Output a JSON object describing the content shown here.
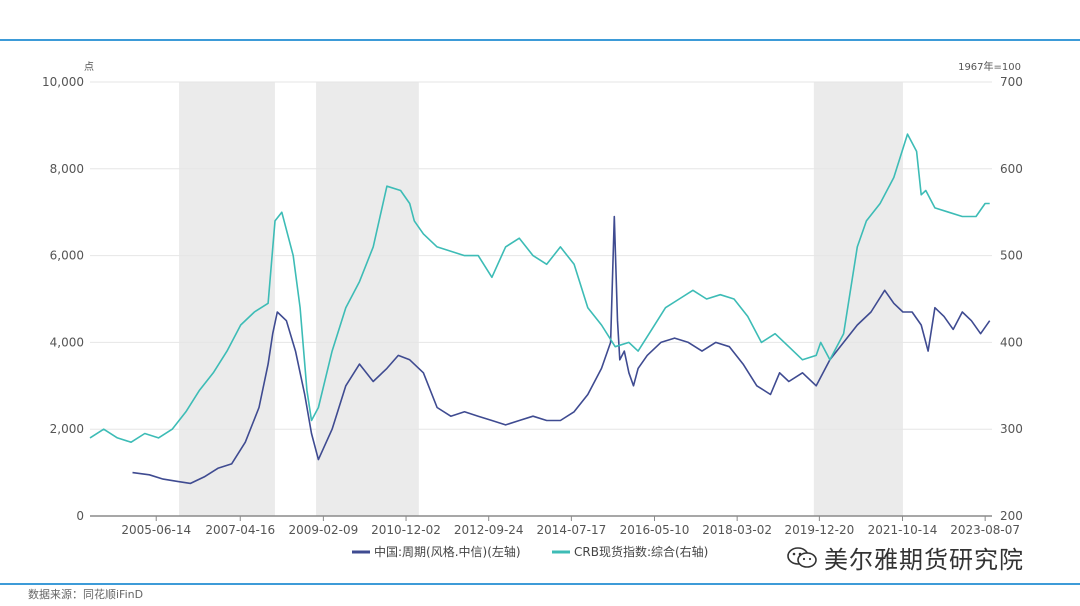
{
  "source": "数据来源：同花顺iFinD",
  "watermark": "美尔雅期货研究院",
  "chart_data": {
    "type": "line",
    "left_axis": {
      "unit": "点",
      "min": 0,
      "max": 10000,
      "ticks": [
        0,
        2000,
        4000,
        6000,
        8000,
        10000
      ],
      "tick_labels": [
        "0",
        "2,000",
        "4,000",
        "6,000",
        "8,000",
        "10,000"
      ]
    },
    "right_axis": {
      "unit": "1967年=100",
      "min": 200,
      "max": 700,
      "ticks": [
        200,
        300,
        400,
        500,
        600,
        700
      ],
      "tick_labels": [
        "200",
        "300",
        "400",
        "500",
        "600",
        "700"
      ]
    },
    "x_range": [
      2004.0,
      2023.75
    ],
    "x_ticks": [
      2005.45,
      2007.29,
      2009.11,
      2010.92,
      2012.73,
      2014.54,
      2016.36,
      2018.17,
      2019.97,
      2021.79,
      2023.6
    ],
    "x_tick_labels": [
      "2005-06-14",
      "2007-04-16",
      "2009-02-09",
      "2010-12-02",
      "2012-09-24",
      "2014-07-17",
      "2016-05-10",
      "2018-03-02",
      "2019-12-20",
      "2021-10-14",
      "2023-08-07"
    ],
    "shaded_periods": [
      [
        2005.95,
        2008.05
      ],
      [
        2008.95,
        2011.2
      ],
      [
        2019.85,
        2021.8
      ]
    ],
    "grid": true,
    "legend_position": "bottom",
    "series": [
      {
        "name": "中国:周期(风格.中信)(左轴)",
        "axis": "left",
        "color": "#3f4b91",
        "x": [
          2004.93,
          2005.3,
          2005.6,
          2005.9,
          2006.2,
          2006.5,
          2006.8,
          2007.1,
          2007.4,
          2007.7,
          2007.9,
          2008.0,
          2008.1,
          2008.3,
          2008.5,
          2008.7,
          2008.85,
          2009.0,
          2009.3,
          2009.6,
          2009.9,
          2010.2,
          2010.5,
          2010.75,
          2011.0,
          2011.3,
          2011.6,
          2011.9,
          2012.2,
          2012.5,
          2012.8,
          2013.1,
          2013.4,
          2013.7,
          2014.0,
          2014.3,
          2014.6,
          2014.9,
          2015.2,
          2015.4,
          2015.48,
          2015.55,
          2015.6,
          2015.7,
          2015.8,
          2015.9,
          2016.0,
          2016.2,
          2016.5,
          2016.8,
          2017.1,
          2017.4,
          2017.7,
          2018.0,
          2018.3,
          2018.6,
          2018.9,
          2019.1,
          2019.3,
          2019.6,
          2019.9,
          2020.2,
          2020.5,
          2020.8,
          2021.1,
          2021.4,
          2021.6,
          2021.8,
          2022.0,
          2022.2,
          2022.35,
          2022.5,
          2022.7,
          2022.9,
          2023.1,
          2023.3,
          2023.5,
          2023.7
        ],
        "values": [
          1000,
          950,
          850,
          800,
          750,
          900,
          1100,
          1200,
          1700,
          2500,
          3500,
          4200,
          4700,
          4500,
          3800,
          2800,
          1900,
          1300,
          2000,
          3000,
          3500,
          3100,
          3400,
          3700,
          3600,
          3300,
          2500,
          2300,
          2400,
          2300,
          2200,
          2100,
          2200,
          2300,
          2200,
          2200,
          2400,
          2800,
          3400,
          4000,
          6900,
          4500,
          3600,
          3800,
          3300,
          3000,
          3400,
          3700,
          4000,
          4100,
          4000,
          3800,
          4000,
          3900,
          3500,
          3000,
          2800,
          3300,
          3100,
          3300,
          3000,
          3600,
          4000,
          4400,
          4700,
          5200,
          4900,
          4700,
          4700,
          4400,
          3800,
          4800,
          4600,
          4300,
          4700,
          4500,
          4200,
          4500
        ]
      },
      {
        "name": "CRB现货指数:综合(右轴)",
        "axis": "right",
        "color": "#3dbcb6",
        "x": [
          2004.0,
          2004.3,
          2004.6,
          2004.9,
          2005.2,
          2005.5,
          2005.8,
          2006.1,
          2006.4,
          2006.7,
          2007.0,
          2007.3,
          2007.6,
          2007.9,
          2008.05,
          2008.2,
          2008.45,
          2008.6,
          2008.75,
          2008.85,
          2009.0,
          2009.3,
          2009.6,
          2009.9,
          2010.2,
          2010.5,
          2010.8,
          2011.0,
          2011.1,
          2011.3,
          2011.6,
          2011.9,
          2012.2,
          2012.5,
          2012.8,
          2013.1,
          2013.4,
          2013.7,
          2014.0,
          2014.3,
          2014.6,
          2014.9,
          2015.2,
          2015.5,
          2015.8,
          2016.0,
          2016.3,
          2016.6,
          2016.9,
          2017.2,
          2017.5,
          2017.8,
          2018.1,
          2018.4,
          2018.7,
          2019.0,
          2019.3,
          2019.6,
          2019.9,
          2020.0,
          2020.2,
          2020.5,
          2020.8,
          2021.0,
          2021.3,
          2021.6,
          2021.9,
          2022.1,
          2022.2,
          2022.3,
          2022.5,
          2022.8,
          2023.1,
          2023.4,
          2023.6,
          2023.7
        ],
        "values": [
          290,
          300,
          290,
          285,
          295,
          290,
          300,
          320,
          345,
          365,
          390,
          420,
          435,
          445,
          540,
          550,
          500,
          440,
          345,
          310,
          325,
          390,
          440,
          470,
          510,
          580,
          575,
          560,
          540,
          525,
          510,
          505,
          500,
          500,
          475,
          510,
          520,
          500,
          490,
          510,
          490,
          440,
          420,
          395,
          400,
          390,
          415,
          440,
          450,
          460,
          450,
          455,
          450,
          430,
          400,
          410,
          395,
          380,
          385,
          400,
          380,
          410,
          510,
          540,
          560,
          590,
          640,
          620,
          570,
          575,
          555,
          550,
          545,
          545,
          560,
          560
        ]
      }
    ]
  }
}
